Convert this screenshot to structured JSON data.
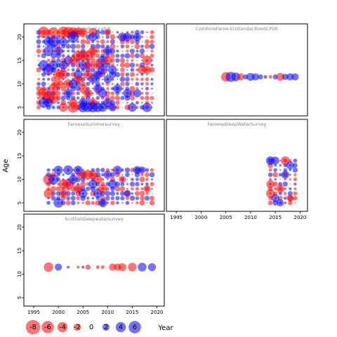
{
  "chart_data": {
    "type": "scatter",
    "xlabel": "Year",
    "ylabel": "Age",
    "xlim": [
      1993,
      2021.5
    ],
    "ylim": [
      3.2,
      22.8
    ],
    "xticks": [
      1995,
      2000,
      2005,
      2010,
      2015,
      2020
    ],
    "yticks": [
      5,
      10,
      15,
      20
    ],
    "colors": {
      "positive": "#0000ff",
      "negative": "#ff0000",
      "frame": "#000000",
      "title": "#808080"
    },
    "legend": {
      "values": [
        -8,
        -6,
        -4,
        -2,
        0,
        2,
        4,
        6
      ],
      "labels": [
        "-8",
        "-6",
        "-4",
        "-2",
        "0",
        "2",
        "4",
        "6"
      ]
    },
    "panels": [
      {
        "title": "Residual catch",
        "year_range": [
          1996,
          2019
        ],
        "age_range": [
          5,
          21
        ],
        "points": [
          {
            "x": 1997,
            "y": 21,
            "v": -5
          },
          {
            "x": 1999,
            "y": 21,
            "v": -4
          },
          {
            "x": 2001,
            "y": 21,
            "v": -5
          },
          {
            "x": 2002,
            "y": 21,
            "v": -4.5
          },
          {
            "x": 2003,
            "y": 21,
            "v": -4
          },
          {
            "x": 2004,
            "y": 21,
            "v": -3.5
          },
          {
            "x": 2005,
            "y": 21,
            "v": -3
          },
          {
            "x": 2007,
            "y": 21,
            "v": -3
          },
          {
            "x": 2010,
            "y": 21,
            "v": -2
          },
          {
            "x": 2003,
            "y": 20,
            "v": 5
          },
          {
            "x": 2007,
            "y": 20,
            "v": 3
          },
          {
            "x": 2013,
            "y": 20,
            "v": 3
          },
          {
            "x": 2014,
            "y": 20,
            "v": 3
          },
          {
            "x": 2016,
            "y": 20,
            "v": 2.5
          },
          {
            "x": 1998,
            "y": 19,
            "v": 3.5
          },
          {
            "x": 1999,
            "y": 19,
            "v": 4.5
          },
          {
            "x": 2001,
            "y": 19,
            "v": 3
          },
          {
            "x": 1998,
            "y": 17,
            "v": 4
          },
          {
            "x": 2000,
            "y": 17,
            "v": 3
          },
          {
            "x": 2004,
            "y": 16,
            "v": -4
          },
          {
            "x": 2005,
            "y": 16,
            "v": -4.5
          },
          {
            "x": 2006,
            "y": 16,
            "v": -3.5
          },
          {
            "x": 2007,
            "y": 17,
            "v": -3
          },
          {
            "x": 2010,
            "y": 17,
            "v": 3
          },
          {
            "x": 2002,
            "y": 15,
            "v": 3
          },
          {
            "x": 2003,
            "y": 15,
            "v": -3
          },
          {
            "x": 2009,
            "y": 15,
            "v": 3.5
          },
          {
            "x": 2010,
            "y": 15,
            "v": -3
          },
          {
            "x": 2018,
            "y": 15,
            "v": -3.5
          },
          {
            "x": 1997,
            "y": 14,
            "v": 4
          },
          {
            "x": 1998,
            "y": 13,
            "v": 4.5
          },
          {
            "x": 1999,
            "y": 14,
            "v": 3.5
          },
          {
            "x": 2001,
            "y": 14,
            "v": 3
          },
          {
            "x": 2005,
            "y": 14,
            "v": 3
          },
          {
            "x": 2006,
            "y": 14,
            "v": -3
          },
          {
            "x": 2008,
            "y": 14,
            "v": -3
          },
          {
            "x": 2009,
            "y": 13,
            "v": 3.5
          },
          {
            "x": 2011,
            "y": 13,
            "v": 3
          },
          {
            "x": 2017,
            "y": 13,
            "v": -3
          },
          {
            "x": 2018,
            "y": 13,
            "v": -2.5
          },
          {
            "x": 2000,
            "y": 12,
            "v": -4
          },
          {
            "x": 2001,
            "y": 12,
            "v": -3.5
          },
          {
            "x": 2004,
            "y": 12,
            "v": 3
          },
          {
            "x": 2006,
            "y": 12,
            "v": -3
          },
          {
            "x": 2008,
            "y": 12,
            "v": 3
          },
          {
            "x": 2011,
            "y": 12,
            "v": 2
          },
          {
            "x": 2002,
            "y": 10,
            "v": -3.5
          },
          {
            "x": 2004,
            "y": 11,
            "v": -3
          },
          {
            "x": 2007,
            "y": 11,
            "v": 3
          },
          {
            "x": 2010,
            "y": 11,
            "v": 2.5
          },
          {
            "x": 1999,
            "y": 9,
            "v": -4
          },
          {
            "x": 2000,
            "y": 10,
            "v": -3.5
          },
          {
            "x": 2003,
            "y": 10,
            "v": 3
          },
          {
            "x": 2005,
            "y": 9,
            "v": -3
          },
          {
            "x": 2008,
            "y": 9,
            "v": 3
          },
          {
            "x": 2012,
            "y": 9,
            "v": 3
          },
          {
            "x": 1997,
            "y": 8,
            "v": -4.5
          },
          {
            "x": 1998,
            "y": 7,
            "v": -5
          },
          {
            "x": 1999,
            "y": 7,
            "v": -4
          },
          {
            "x": 2002,
            "y": 8,
            "v": 3
          },
          {
            "x": 2006,
            "y": 8,
            "v": -3
          },
          {
            "x": 2009,
            "y": 8,
            "v": 3
          },
          {
            "x": 2014,
            "y": 8,
            "v": 3
          },
          {
            "x": 2016,
            "y": 8,
            "v": 2.5
          },
          {
            "x": 1997,
            "y": 6,
            "v": 4
          },
          {
            "x": 1998,
            "y": 6,
            "v": 3
          },
          {
            "x": 2003,
            "y": 6,
            "v": -3
          },
          {
            "x": 2005,
            "y": 6,
            "v": 3
          },
          {
            "x": 2007,
            "y": 6,
            "v": -3
          },
          {
            "x": 2010,
            "y": 6,
            "v": 3
          },
          {
            "x": 2001,
            "y": 5,
            "v": -3
          },
          {
            "x": 2003,
            "y": 5,
            "v": -4.5
          },
          {
            "x": 2005,
            "y": 5,
            "v": 4
          },
          {
            "x": 2006,
            "y": 5,
            "v": 3.5
          },
          {
            "x": 2007,
            "y": 5,
            "v": 4
          },
          {
            "x": 2008,
            "y": 5,
            "v": 3.5
          },
          {
            "x": 2009,
            "y": 5,
            "v": 3
          },
          {
            "x": 2011,
            "y": 5,
            "v": 2.5
          },
          {
            "x": 2015,
            "y": 5,
            "v": 3
          },
          {
            "x": 2018,
            "y": 5,
            "v": 3.5
          }
        ]
      },
      {
        "title": "CombineFaroe-EUstandardizedCPUE",
        "points": [
          {
            "x": 2005,
            "y": 11.5,
            "v": -3.5
          },
          {
            "x": 2006,
            "y": 11.5,
            "v": 4
          },
          {
            "x": 2007,
            "y": 11.5,
            "v": 3
          },
          {
            "x": 2008,
            "y": 11.5,
            "v": -2
          },
          {
            "x": 2009,
            "y": 11.5,
            "v": 1
          },
          {
            "x": 2010,
            "y": 11.5,
            "v": 2.5
          },
          {
            "x": 2011,
            "y": 11.5,
            "v": 2
          },
          {
            "x": 2012,
            "y": 11.5,
            "v": 1
          },
          {
            "x": 2013,
            "y": 11.5,
            "v": 0.5
          },
          {
            "x": 2014,
            "y": 11.5,
            "v": -0.5
          },
          {
            "x": 2015,
            "y": 11.5,
            "v": 1
          },
          {
            "x": 2016,
            "y": 11.5,
            "v": -2.5
          },
          {
            "x": 2017,
            "y": 11.5,
            "v": 1.5
          },
          {
            "x": 2018,
            "y": 11.5,
            "v": 2
          },
          {
            "x": 2019,
            "y": 11.5,
            "v": 2
          }
        ]
      },
      {
        "title": "FaroeseSummersurvey",
        "year_range": [
          1998,
          2019
        ],
        "age_range": [
          5,
          12
        ],
        "points": [
          {
            "x": 1998,
            "y": 10,
            "v": -4.5
          },
          {
            "x": 1998,
            "y": 7,
            "v": -3.5
          },
          {
            "x": 1999,
            "y": 10,
            "v": 4
          },
          {
            "x": 2000,
            "y": 5,
            "v": 3.5
          },
          {
            "x": 2000,
            "y": 12,
            "v": 3
          },
          {
            "x": 2001,
            "y": 9,
            "v": -3.5
          },
          {
            "x": 2001,
            "y": 7,
            "v": -3
          },
          {
            "x": 2002,
            "y": 12,
            "v": 3.5
          },
          {
            "x": 2002,
            "y": 9,
            "v": -4
          },
          {
            "x": 2003,
            "y": 10,
            "v": 3
          },
          {
            "x": 2004,
            "y": 12,
            "v": 3
          },
          {
            "x": 2004,
            "y": 8,
            "v": -3
          },
          {
            "x": 2005,
            "y": 11,
            "v": -3
          },
          {
            "x": 2005,
            "y": 7,
            "v": 3
          },
          {
            "x": 2006,
            "y": 11,
            "v": -3.5
          },
          {
            "x": 2007,
            "y": 11,
            "v": -3
          },
          {
            "x": 2007,
            "y": 9,
            "v": 3
          },
          {
            "x": 2008,
            "y": 10,
            "v": -3
          },
          {
            "x": 2008,
            "y": 7,
            "v": 3
          },
          {
            "x": 2009,
            "y": 8,
            "v": -3
          },
          {
            "x": 2009,
            "y": 5,
            "v": 3
          },
          {
            "x": 2010,
            "y": 11,
            "v": 2.5
          },
          {
            "x": 2011,
            "y": 9,
            "v": 3
          },
          {
            "x": 2012,
            "y": 12,
            "v": 3
          },
          {
            "x": 2013,
            "y": 10,
            "v": -2
          },
          {
            "x": 2014,
            "y": 7,
            "v": 2
          },
          {
            "x": 2016,
            "y": 12,
            "v": 2.5
          },
          {
            "x": 2017,
            "y": 12,
            "v": 2
          },
          {
            "x": 2018,
            "y": 8,
            "v": -2
          }
        ]
      },
      {
        "title": "FaroeseDeepWaterSurvey",
        "year_range": [
          2014,
          2019
        ],
        "age_range": [
          5,
          14
        ],
        "points": [
          {
            "x": 2014,
            "y": 14,
            "v": 3
          },
          {
            "x": 2014,
            "y": 9,
            "v": -2.5
          },
          {
            "x": 2014,
            "y": 7,
            "v": -3
          },
          {
            "x": 2015,
            "y": 14,
            "v": 2.5
          },
          {
            "x": 2015,
            "y": 6,
            "v": 2.5
          },
          {
            "x": 2016,
            "y": 8,
            "v": -2.5
          },
          {
            "x": 2016,
            "y": 5,
            "v": 2
          },
          {
            "x": 2017,
            "y": 14,
            "v": -3
          },
          {
            "x": 2017,
            "y": 11,
            "v": 2.5
          },
          {
            "x": 2018,
            "y": 13,
            "v": 2.5
          },
          {
            "x": 2018,
            "y": 6,
            "v": -2
          }
        ]
      },
      {
        "title": "ScottishDeepwatersurvey",
        "points": [
          {
            "x": 1998,
            "y": 11.5,
            "v": -3.5
          },
          {
            "x": 2000,
            "y": 11.5,
            "v": 2
          },
          {
            "x": 2002,
            "y": 11.5,
            "v": 0.3
          },
          {
            "x": 2004,
            "y": 11.5,
            "v": -0.3
          },
          {
            "x": 2005,
            "y": 11.5,
            "v": 0.3
          },
          {
            "x": 2006,
            "y": 11.5,
            "v": -1
          },
          {
            "x": 2008,
            "y": 11.5,
            "v": -0.5
          },
          {
            "x": 2009,
            "y": 11.5,
            "v": -0.5
          },
          {
            "x": 2011,
            "y": 11.5,
            "v": -2
          },
          {
            "x": 2012,
            "y": 11.5,
            "v": -2
          },
          {
            "x": 2013,
            "y": 11.5,
            "v": -2.5
          },
          {
            "x": 2015,
            "y": 11.5,
            "v": -3
          },
          {
            "x": 2017,
            "y": 11.5,
            "v": 3
          },
          {
            "x": 2019,
            "y": 11.5,
            "v": 2.5
          }
        ]
      }
    ]
  }
}
